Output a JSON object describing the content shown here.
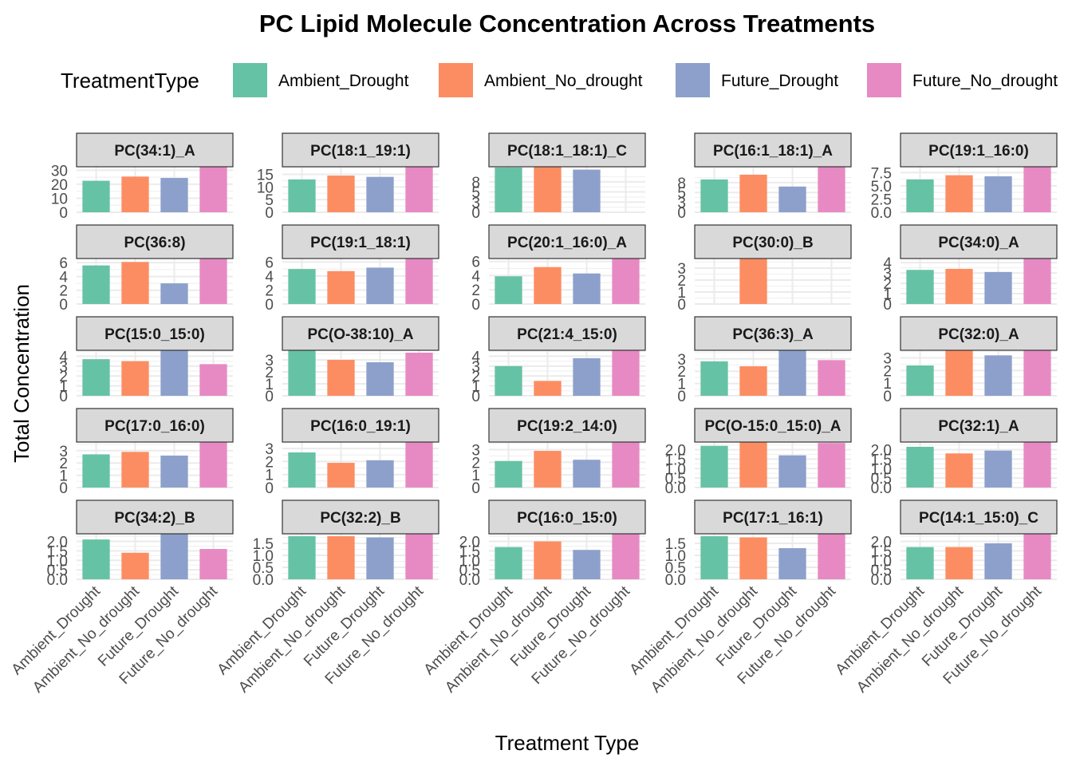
{
  "chart_data": {
    "type": "bar",
    "title": "PC  Lipid Molecule Concentration Across Treatments",
    "xlabel": "Treatment Type",
    "ylabel": "Total Concentration",
    "legend": {
      "title": "TreatmentType",
      "placement": "top",
      "entries": [
        "Ambient_Drought",
        "Ambient_No_drought",
        "Future_Drought",
        "Future_No_drought"
      ]
    },
    "colors": {
      "Ambient_Drought": "#66c2a5",
      "Ambient_No_drought": "#fc8d62",
      "Future_Drought": "#8da0cb",
      "Future_No_drought": "#e78ac3"
    },
    "categories": [
      "Ambient_Drought",
      "Ambient_No_drought",
      "Future_Drought",
      "Future_No_drought"
    ],
    "facets": [
      {
        "label": "PC(34:1)_A",
        "ymax": 32.5,
        "ticks": [
          "0",
          "10",
          "20",
          "30"
        ],
        "tick_values": [
          0,
          10,
          20,
          30
        ],
        "values": [
          22.5,
          25.5,
          24.5,
          32.5
        ]
      },
      {
        "label": "PC(18:1_19:1)",
        "ymax": 18,
        "ticks": [
          "0",
          "5",
          "10",
          "15"
        ],
        "tick_values": [
          0,
          5,
          10,
          15
        ],
        "values": [
          13,
          14.5,
          14,
          18
        ]
      },
      {
        "label": "PC(18:1_18:1)_C",
        "ymax": 11.2,
        "ticks": [
          "0",
          "3",
          "5",
          "8"
        ],
        "tick_values": [
          0,
          2.5,
          5,
          7.5
        ],
        "values": [
          11,
          11.2,
          10.5,
          null
        ]
      },
      {
        "label": "PC(16:1_18:1)_A",
        "ymax": 11.5,
        "ticks": [
          "0",
          "3",
          "5",
          "8"
        ],
        "tick_values": [
          0,
          2.5,
          5,
          7.5
        ],
        "values": [
          8.3,
          9.5,
          6.5,
          11.5
        ]
      },
      {
        "label": "PC(19:1_16:0)",
        "ymax": 8.6,
        "ticks": [
          "0.0",
          "2.5",
          "5.0",
          "7.5"
        ],
        "tick_values": [
          0,
          2.5,
          5,
          7.5
        ],
        "values": [
          6.2,
          7,
          6.8,
          8.6
        ]
      },
      {
        "label": "PC(36:8)",
        "ymax": 6.6,
        "ticks": [
          "0",
          "2",
          "4",
          "6"
        ],
        "tick_values": [
          0,
          2,
          4,
          6
        ],
        "values": [
          5.6,
          6.1,
          3,
          6.6
        ]
      },
      {
        "label": "PC(19:1_18:1)",
        "ymax": 6.5,
        "ticks": [
          "0",
          "2",
          "4",
          "6"
        ],
        "tick_values": [
          0,
          2,
          4,
          6
        ],
        "values": [
          5,
          4.7,
          5.2,
          6.5
        ]
      },
      {
        "label": "PC(20:1_16:0)_A",
        "ymax": 6.4,
        "ticks": [
          "0",
          "2",
          "4",
          "6"
        ],
        "tick_values": [
          0,
          2,
          4,
          6
        ],
        "values": [
          3.9,
          5.2,
          4.3,
          6.4
        ]
      },
      {
        "label": "PC(30:0)_B",
        "ymax": 3.8,
        "ticks": [
          "0",
          "1",
          "2",
          "3"
        ],
        "tick_values": [
          0,
          1,
          2,
          3
        ],
        "values": [
          null,
          3.8,
          null,
          null
        ]
      },
      {
        "label": "PC(34:0)_A",
        "ymax": 4.4,
        "ticks": [
          "0",
          "1",
          "2",
          "3",
          "4"
        ],
        "tick_values": [
          0,
          1,
          2,
          3,
          4
        ],
        "values": [
          3.3,
          3.4,
          3.1,
          4.4
        ]
      },
      {
        "label": "PC(15:0_15:0)",
        "ymax": 4.6,
        "ticks": [
          "0",
          "1",
          "2",
          "3",
          "4"
        ],
        "tick_values": [
          0,
          1,
          2,
          3,
          4
        ],
        "values": [
          3.7,
          3.5,
          4.6,
          3.2
        ]
      },
      {
        "label": "PC(O-38:10)_A",
        "ymax": 3.8,
        "ticks": [
          "0",
          "1",
          "2",
          "3"
        ],
        "tick_values": [
          0,
          1,
          2,
          3
        ],
        "values": [
          3.8,
          3,
          2.8,
          3.6
        ]
      },
      {
        "label": "PC(21:4_15:0)",
        "ymax": 4.6,
        "ticks": [
          "0",
          "1",
          "2",
          "3",
          "4"
        ],
        "tick_values": [
          0,
          1,
          2,
          3,
          4
        ],
        "values": [
          3,
          1.5,
          3.8,
          4.6
        ]
      },
      {
        "label": "PC(36:3)_A",
        "ymax": 3.7,
        "ticks": [
          "0",
          "1",
          "2",
          "3"
        ],
        "tick_values": [
          0,
          1,
          2,
          3
        ],
        "values": [
          2.8,
          2.4,
          3.7,
          2.9
        ]
      },
      {
        "label": "PC(32:0)_A",
        "ymax": 3.6,
        "ticks": [
          "0",
          "1",
          "2",
          "3"
        ],
        "tick_values": [
          0,
          1,
          2,
          3
        ],
        "values": [
          2.4,
          3.6,
          3.2,
          3.6
        ]
      },
      {
        "label": "PC(17:0_16:0)",
        "ymax": 3.7,
        "ticks": [
          "0",
          "1",
          "2",
          "3"
        ],
        "tick_values": [
          0,
          1,
          2,
          3
        ],
        "values": [
          2.7,
          2.9,
          2.6,
          3.7
        ]
      },
      {
        "label": "PC(16:0_19:1)",
        "ymax": 3.5,
        "ticks": [
          "0",
          "1",
          "2",
          "3"
        ],
        "tick_values": [
          0,
          1,
          2,
          3
        ],
        "values": [
          2.7,
          1.9,
          2.1,
          3.5
        ]
      },
      {
        "label": "PC(19:2_14:0)",
        "ymax": 3.6,
        "ticks": [
          "0",
          "1",
          "2",
          "3"
        ],
        "tick_values": [
          0,
          1,
          2,
          3
        ],
        "values": [
          2.1,
          2.9,
          2.2,
          3.6
        ]
      },
      {
        "label": "PC(O-15:0_15:0)_A",
        "ymax": 2.4,
        "ticks": [
          "0.0",
          "0.5",
          "1.0",
          "1.5",
          "2.0"
        ],
        "tick_values": [
          0,
          0.5,
          1,
          1.5,
          2
        ],
        "values": [
          2.2,
          2.4,
          1.7,
          2.35
        ]
      },
      {
        "label": "PC(32:1)_A",
        "ymax": 2.4,
        "ticks": [
          "0.0",
          "0.5",
          "1.0",
          "1.5",
          "2.0"
        ],
        "tick_values": [
          0,
          0.5,
          1,
          1.5,
          2
        ],
        "values": [
          2.15,
          1.8,
          1.95,
          2.4
        ]
      },
      {
        "label": "PC(34:2)_B",
        "ymax": 2.4,
        "ticks": [
          "0.0",
          "0.5",
          "1.0",
          "1.5",
          "2.0"
        ],
        "tick_values": [
          0,
          0.5,
          1,
          1.5,
          2
        ],
        "values": [
          2.1,
          1.4,
          2.4,
          1.6
        ]
      },
      {
        "label": "PC(32:2)_B",
        "ymax": 1.9,
        "ticks": [
          "0.0",
          "0.5",
          "1.0",
          "1.5"
        ],
        "tick_values": [
          0,
          0.5,
          1,
          1.5
        ],
        "values": [
          1.8,
          1.8,
          1.75,
          1.9
        ]
      },
      {
        "label": "PC(16:0_15:0)",
        "ymax": 2.4,
        "ticks": [
          "0.0",
          "0.5",
          "1.0",
          "1.5",
          "2.0"
        ],
        "tick_values": [
          0,
          0.5,
          1,
          1.5,
          2
        ],
        "values": [
          1.7,
          2,
          1.55,
          2.4
        ]
      },
      {
        "label": "PC(17:1_16:1)",
        "ymax": 1.9,
        "ticks": [
          "0.0",
          "0.5",
          "1.0",
          "1.5"
        ],
        "tick_values": [
          0,
          0.5,
          1,
          1.5
        ],
        "values": [
          1.8,
          1.75,
          1.3,
          1.9
        ]
      },
      {
        "label": "PC(14:1_15:0)_C",
        "ymax": 2.4,
        "ticks": [
          "0.0",
          "0.5",
          "1.0",
          "1.5",
          "2.0"
        ],
        "tick_values": [
          0,
          0.5,
          1,
          1.5,
          2
        ],
        "values": [
          1.7,
          1.7,
          1.9,
          2.4
        ]
      }
    ]
  }
}
